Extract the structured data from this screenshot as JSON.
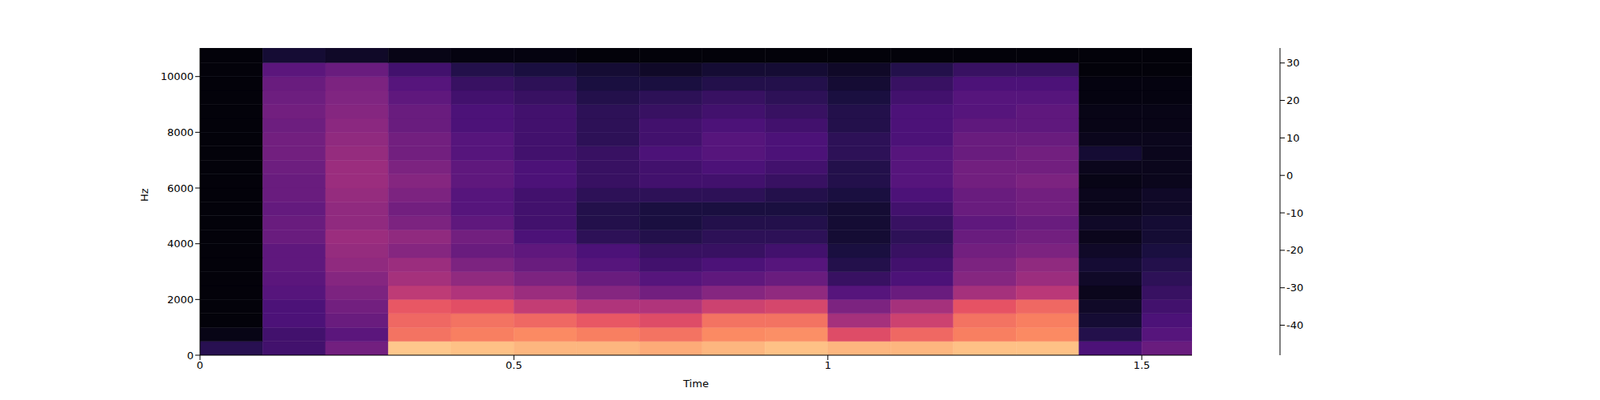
{
  "chart_data": {
    "type": "heatmap",
    "x_label": "Time",
    "y_label": "Hz",
    "x_edges": [
      0,
      0.1,
      0.2,
      0.3,
      0.4,
      0.5,
      0.6,
      0.7,
      0.8,
      0.9,
      1.0,
      1.1,
      1.2,
      1.3,
      1.4,
      1.5,
      1.58
    ],
    "y_edges": [
      0,
      500,
      1000,
      1500,
      2000,
      2500,
      3000,
      3500,
      4000,
      4500,
      5000,
      5500,
      6000,
      6500,
      7000,
      7500,
      8000,
      8500,
      9000,
      9500,
      10000,
      10500,
      11025
    ],
    "z": [
      [
        -35,
        -30,
        -20,
        25,
        24,
        22,
        22,
        20,
        22,
        24,
        22,
        22,
        24,
        24,
        -28,
        -22
      ],
      [
        -45,
        -30,
        -25,
        10,
        12,
        14,
        12,
        10,
        14,
        15,
        2,
        8,
        12,
        14,
        -36,
        -26
      ],
      [
        -47,
        -28,
        -22,
        8,
        10,
        8,
        5,
        2,
        10,
        10,
        -10,
        -2,
        10,
        12,
        -40,
        -28
      ],
      [
        -47,
        -28,
        -20,
        5,
        3,
        -4,
        -8,
        -8,
        -2,
        0,
        -18,
        -10,
        4,
        8,
        -42,
        -30
      ],
      [
        -47,
        -26,
        -18,
        -5,
        -8,
        -12,
        -16,
        -20,
        -16,
        -14,
        -26,
        -22,
        -10,
        -6,
        -44,
        -32
      ],
      [
        -47,
        -25,
        -16,
        -10,
        -14,
        -18,
        -22,
        -26,
        -24,
        -22,
        -32,
        -28,
        -16,
        -12,
        -42,
        -34
      ],
      [
        -47,
        -24,
        -14,
        -12,
        -18,
        -22,
        -26,
        -30,
        -28,
        -26,
        -36,
        -30,
        -18,
        -14,
        -40,
        -36
      ],
      [
        -47,
        -24,
        -13,
        -16,
        -22,
        -24,
        -28,
        -32,
        -32,
        -30,
        -38,
        -32,
        -20,
        -18,
        -42,
        -38
      ],
      [
        -47,
        -22,
        -12,
        -14,
        -20,
        -28,
        -34,
        -36,
        -34,
        -34,
        -40,
        -34,
        -22,
        -20,
        -44,
        -40
      ],
      [
        -47,
        -22,
        -14,
        -18,
        -24,
        -30,
        -36,
        -38,
        -36,
        -36,
        -40,
        -32,
        -24,
        -22,
        -42,
        -40
      ],
      [
        -47,
        -23,
        -14,
        -20,
        -26,
        -30,
        -36,
        -38,
        -38,
        -38,
        -40,
        -30,
        -22,
        -20,
        -44,
        -42
      ],
      [
        -47,
        -22,
        -13,
        -18,
        -26,
        -30,
        -34,
        -34,
        -34,
        -36,
        -38,
        -28,
        -22,
        -20,
        -44,
        -42
      ],
      [
        -47,
        -22,
        -12,
        -16,
        -24,
        -28,
        -32,
        -30,
        -30,
        -32,
        -36,
        -26,
        -20,
        -18,
        -45,
        -44
      ],
      [
        -47,
        -21,
        -12,
        -18,
        -24,
        -28,
        -32,
        -30,
        -28,
        -30,
        -36,
        -26,
        -20,
        -20,
        -44,
        -44
      ],
      [
        -47,
        -20,
        -13,
        -20,
        -26,
        -30,
        -32,
        -28,
        -26,
        -28,
        -34,
        -26,
        -22,
        -20,
        -40,
        -44
      ],
      [
        -47,
        -20,
        -14,
        -20,
        -26,
        -30,
        -34,
        -30,
        -26,
        -28,
        -34,
        -28,
        -22,
        -22,
        -44,
        -44
      ],
      [
        -47,
        -21,
        -15,
        -22,
        -28,
        -30,
        -34,
        -30,
        -28,
        -30,
        -36,
        -28,
        -24,
        -24,
        -45,
        -45
      ],
      [
        -47,
        -20,
        -16,
        -22,
        -28,
        -30,
        -34,
        -32,
        -30,
        -32,
        -36,
        -28,
        -26,
        -24,
        -45,
        -45
      ],
      [
        -47,
        -21,
        -17,
        -24,
        -30,
        -32,
        -36,
        -34,
        -32,
        -34,
        -38,
        -30,
        -26,
        -26,
        -46,
        -46
      ],
      [
        -47,
        -22,
        -18,
        -26,
        -32,
        -34,
        -38,
        -38,
        -36,
        -36,
        -40,
        -32,
        -28,
        -28,
        -46,
        -46
      ],
      [
        -47,
        -25,
        -22,
        -30,
        -36,
        -38,
        -40,
        -42,
        -40,
        -40,
        -42,
        -36,
        -32,
        -32,
        -47,
        -47
      ],
      [
        -47,
        -40,
        -42,
        -45,
        -46,
        -46,
        -47,
        -47,
        -47,
        -47,
        -47,
        -47,
        -47,
        -47,
        -47,
        -47
      ]
    ],
    "xlim": [
      0,
      1.58
    ],
    "ylim": [
      0,
      11025
    ],
    "xticks": [
      0,
      0.5,
      1,
      1.5
    ],
    "yticks": [
      0,
      2000,
      4000,
      6000,
      8000,
      10000
    ],
    "colorbar": {
      "range": [
        -48,
        34
      ],
      "ticks": [
        -40,
        -30,
        -20,
        -10,
        0,
        10,
        20,
        30
      ]
    }
  }
}
